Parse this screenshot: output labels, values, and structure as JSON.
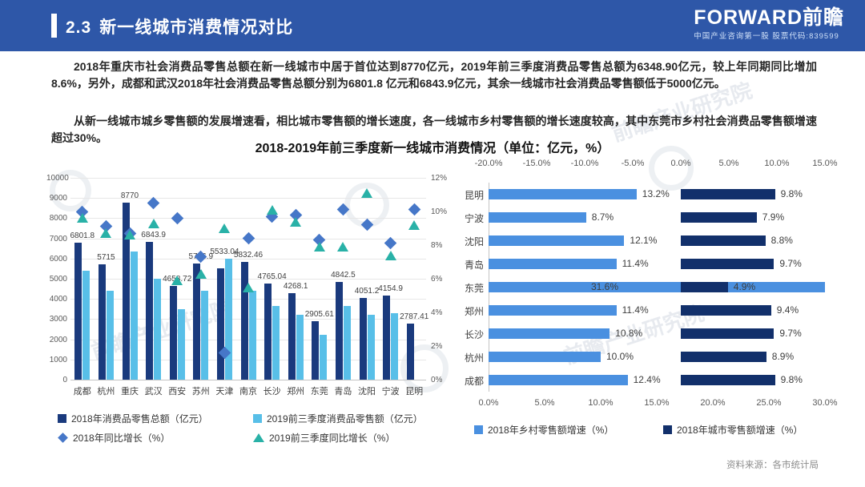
{
  "header": {
    "section_number": "2.3",
    "title": "新一线城市消费情况对比",
    "logo_text": "FORWARD前瞻",
    "logo_sub": "中国产业咨询第一股  股票代码:839599"
  },
  "paragraphs": {
    "p1": "2018年重庆市社会消费品零售总额在新一线城市中居于首位达到8770亿元，2019年前三季度消费品零售总额为6348.90亿元，较上年同期同比增加8.6%，另外，成都和武汉2018年社会消费品零售总额分别为6801.8 亿元和6843.9亿元，其余一线城市社会消费品零售额低于5000亿元。",
    "p2": "从新一线城市城乡零售额的发展增速看，相比城市零售额的增长速度，各一线城市乡村零售额的增长速度较高，其中东莞市乡村社会消费品零售额增速超过30%。"
  },
  "chart_title": "2018-2019年前三季度新一线城市消费情况（单位：亿元，%）",
  "source": "资料来源：各市统计局",
  "watermark_text": "前瞻产业研究院",
  "colors": {
    "header_bg": "#2e57a8",
    "bar_2018": "#1a3a7d",
    "bar_2019": "#58bfe8",
    "diamond_2018": "#4677c8",
    "triangle_2019": "#29b1a7",
    "rural_bar": "#4a90e0",
    "city_bar": "#12306b"
  },
  "chart_data": [
    {
      "type": "bar",
      "title": "2018-2019年前三季度新一线城市消费情况（单位：亿元，%）",
      "categories": [
        "成都",
        "杭州",
        "重庆",
        "武汉",
        "西安",
        "苏州",
        "天津",
        "南京",
        "长沙",
        "郑州",
        "东莞",
        "青岛",
        "沈阳",
        "宁波",
        "昆明"
      ],
      "series": [
        {
          "name": "2018年消费品零售总额（亿元）",
          "kind": "bar",
          "color": "#1a3a7d",
          "values": [
            6801.8,
            5715,
            8770,
            6843.9,
            4658.72,
            5746.9,
            5533.04,
            5832.46,
            4765.04,
            4268.1,
            2905.61,
            4842.5,
            4051.2,
            4154.9,
            2787.41
          ],
          "labels": [
            "6801.8",
            "5715",
            "8770",
            "6843.9",
            "4658.72",
            "5746.9",
            "5533.04",
            "5832.46",
            "4765.04",
            "4268.1",
            "2905.61",
            "4842.5",
            "4051.2",
            "4154.9",
            "2787.41"
          ]
        },
        {
          "name": "2019前三季度消费品零售额（亿元）",
          "kind": "bar",
          "color": "#58bfe8",
          "values": [
            5400,
            4420,
            6348.9,
            5000,
            3500,
            4420,
            6000,
            4400,
            3650,
            3220,
            2230,
            3650,
            3200,
            3300,
            null
          ]
        },
        {
          "name": "2018年同比增长（%）",
          "kind": "scatter-diamond",
          "color": "#4677c8",
          "values": [
            10.0,
            9.1,
            8.7,
            10.5,
            9.6,
            7.3,
            1.6,
            8.4,
            9.7,
            9.8,
            8.3,
            10.1,
            9.2,
            8.1,
            10.1
          ]
        },
        {
          "name": "2019前三季度同比增长（%）",
          "kind": "scatter-triangle",
          "color": "#29b1a7",
          "values": [
            9.6,
            8.7,
            8.6,
            9.3,
            5.9,
            6.3,
            9.0,
            5.5,
            10.1,
            9.4,
            7.9,
            7.9,
            11.1,
            7.4,
            9.2
          ]
        }
      ],
      "y_left": {
        "min": 0,
        "max": 10000,
        "step": 1000
      },
      "y_right": {
        "min": 0,
        "max": 12,
        "step": 2,
        "suffix": "%"
      },
      "grid": true,
      "legend_position": "bottom"
    },
    {
      "type": "bar-horizontal",
      "categories": [
        "昆明",
        "宁波",
        "沈阳",
        "青岛",
        "东莞",
        "郑州",
        "长沙",
        "杭州",
        "成都"
      ],
      "series": [
        {
          "name": "2018年乡村零售额增速（%）",
          "color": "#4a90e0",
          "axis": "bottom",
          "values": [
            13.2,
            8.7,
            12.1,
            11.4,
            31.6,
            11.4,
            10.8,
            10.0,
            12.4
          ]
        },
        {
          "name": "2018年城市零售额增速（%）",
          "color": "#12306b",
          "axis": "top",
          "values": [
            9.8,
            7.9,
            8.8,
            9.7,
            4.9,
            9.4,
            9.7,
            8.9,
            9.8
          ]
        }
      ],
      "axis_top": {
        "min": -20,
        "max": 15,
        "step": 5,
        "suffix": "%"
      },
      "axis_bottom": {
        "min": 0,
        "max": 30,
        "step": 5,
        "suffix": "%"
      },
      "legend_position": "bottom"
    }
  ]
}
